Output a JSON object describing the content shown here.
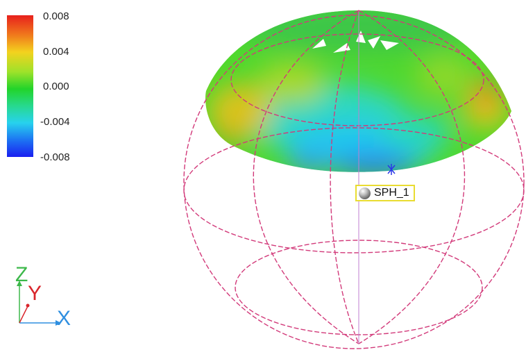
{
  "legend": {
    "ticks": [
      "0.008",
      "0.004",
      "0.000",
      "-0.004",
      "-0.008"
    ]
  },
  "feature": {
    "label": "SPH_1",
    "icon": "sphere-icon"
  },
  "triad": {
    "z": "Z",
    "y": "Y",
    "x": "X",
    "colors": {
      "x": "#2f8fe0",
      "y": "#d9252b",
      "z": "#3cb84a"
    }
  },
  "wireframe_color": "#d23a7a"
}
